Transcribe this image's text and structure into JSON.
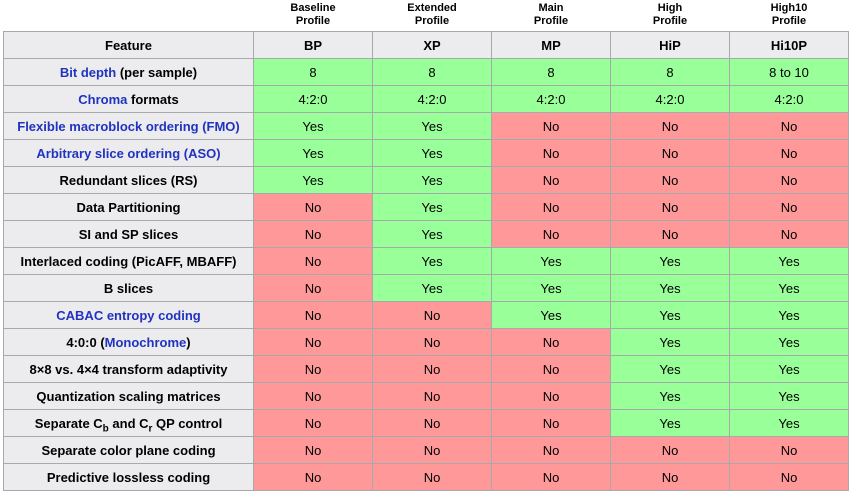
{
  "colors": {
    "yes_bg": "#99ff99",
    "no_bg": "#ff9999",
    "header_bg": "#ececee",
    "border": "#a7a9ac",
    "link_blue": "#2033c0"
  },
  "table": {
    "feature_header": "Feature",
    "profiles": [
      {
        "label_lines": [
          "Baseline",
          "Profile"
        ],
        "abbr": "BP"
      },
      {
        "label_lines": [
          "Extended",
          "Profile"
        ],
        "abbr": "XP"
      },
      {
        "label_lines": [
          "Main",
          "Profile"
        ],
        "abbr": "MP"
      },
      {
        "label_lines": [
          "High",
          "Profile"
        ],
        "abbr": "HiP"
      },
      {
        "label_lines": [
          "High10",
          "Profile"
        ],
        "abbr": "Hi10P"
      }
    ],
    "rows": [
      {
        "feature": [
          {
            "t": "Bit depth",
            "link": true
          },
          {
            "t": " (per sample)"
          }
        ],
        "cells": [
          {
            "t": "8",
            "ok": true
          },
          {
            "t": "8",
            "ok": true
          },
          {
            "t": "8",
            "ok": true
          },
          {
            "t": "8",
            "ok": true
          },
          {
            "t": "8 to 10",
            "ok": true
          }
        ]
      },
      {
        "feature": [
          {
            "t": "Chroma",
            "link": true
          },
          {
            "t": " formats"
          }
        ],
        "cells": [
          {
            "t": "4:2:0",
            "ok": true
          },
          {
            "t": "4:2:0",
            "ok": true
          },
          {
            "t": "4:2:0",
            "ok": true
          },
          {
            "t": "4:2:0",
            "ok": true
          },
          {
            "t": "4:2:0",
            "ok": true
          }
        ]
      },
      {
        "feature": [
          {
            "t": "Flexible macroblock ordering (FMO)",
            "link": true
          }
        ],
        "cells": [
          {
            "t": "Yes",
            "ok": true
          },
          {
            "t": "Yes",
            "ok": true
          },
          {
            "t": "No",
            "ok": false
          },
          {
            "t": "No",
            "ok": false
          },
          {
            "t": "No",
            "ok": false
          }
        ]
      },
      {
        "feature": [
          {
            "t": "Arbitrary slice ordering (ASO)",
            "link": true
          }
        ],
        "cells": [
          {
            "t": "Yes",
            "ok": true
          },
          {
            "t": "Yes",
            "ok": true
          },
          {
            "t": "No",
            "ok": false
          },
          {
            "t": "No",
            "ok": false
          },
          {
            "t": "No",
            "ok": false
          }
        ]
      },
      {
        "feature": [
          {
            "t": "Redundant slices (RS)"
          }
        ],
        "cells": [
          {
            "t": "Yes",
            "ok": true
          },
          {
            "t": "Yes",
            "ok": true
          },
          {
            "t": "No",
            "ok": false
          },
          {
            "t": "No",
            "ok": false
          },
          {
            "t": "No",
            "ok": false
          }
        ]
      },
      {
        "feature": [
          {
            "t": "Data Partitioning"
          }
        ],
        "cells": [
          {
            "t": "No",
            "ok": false
          },
          {
            "t": "Yes",
            "ok": true
          },
          {
            "t": "No",
            "ok": false
          },
          {
            "t": "No",
            "ok": false
          },
          {
            "t": "No",
            "ok": false
          }
        ]
      },
      {
        "feature": [
          {
            "t": "SI and SP slices"
          }
        ],
        "cells": [
          {
            "t": "No",
            "ok": false
          },
          {
            "t": "Yes",
            "ok": true
          },
          {
            "t": "No",
            "ok": false
          },
          {
            "t": "No",
            "ok": false
          },
          {
            "t": "No",
            "ok": false
          }
        ]
      },
      {
        "feature": [
          {
            "t": "Interlaced coding (PicAFF, MBAFF)"
          }
        ],
        "cells": [
          {
            "t": "No",
            "ok": false
          },
          {
            "t": "Yes",
            "ok": true
          },
          {
            "t": "Yes",
            "ok": true
          },
          {
            "t": "Yes",
            "ok": true
          },
          {
            "t": "Yes",
            "ok": true
          }
        ]
      },
      {
        "feature": [
          {
            "t": "B slices"
          }
        ],
        "cells": [
          {
            "t": "No",
            "ok": false
          },
          {
            "t": "Yes",
            "ok": true
          },
          {
            "t": "Yes",
            "ok": true
          },
          {
            "t": "Yes",
            "ok": true
          },
          {
            "t": "Yes",
            "ok": true
          }
        ]
      },
      {
        "feature": [
          {
            "t": "CABAC entropy coding",
            "link": true
          }
        ],
        "cells": [
          {
            "t": "No",
            "ok": false
          },
          {
            "t": "No",
            "ok": false
          },
          {
            "t": "Yes",
            "ok": true
          },
          {
            "t": "Yes",
            "ok": true
          },
          {
            "t": "Yes",
            "ok": true
          }
        ]
      },
      {
        "feature": [
          {
            "t": "4:0:0 ("
          },
          {
            "t": "Monochrome",
            "link": true
          },
          {
            "t": ")"
          }
        ],
        "cells": [
          {
            "t": "No",
            "ok": false
          },
          {
            "t": "No",
            "ok": false
          },
          {
            "t": "No",
            "ok": false
          },
          {
            "t": "Yes",
            "ok": true
          },
          {
            "t": "Yes",
            "ok": true
          }
        ]
      },
      {
        "feature": [
          {
            "t": "8×8 vs. 4×4 transform adaptivity"
          }
        ],
        "cells": [
          {
            "t": "No",
            "ok": false
          },
          {
            "t": "No",
            "ok": false
          },
          {
            "t": "No",
            "ok": false
          },
          {
            "t": "Yes",
            "ok": true
          },
          {
            "t": "Yes",
            "ok": true
          }
        ]
      },
      {
        "feature": [
          {
            "t": "Quantization scaling matrices"
          }
        ],
        "cells": [
          {
            "t": "No",
            "ok": false
          },
          {
            "t": "No",
            "ok": false
          },
          {
            "t": "No",
            "ok": false
          },
          {
            "t": "Yes",
            "ok": true
          },
          {
            "t": "Yes",
            "ok": true
          }
        ]
      },
      {
        "feature": [
          {
            "t": "Separate C"
          },
          {
            "t": "b",
            "sub": true
          },
          {
            "t": " and C"
          },
          {
            "t": "r",
            "sub": true
          },
          {
            "t": " QP control"
          }
        ],
        "cells": [
          {
            "t": "No",
            "ok": false
          },
          {
            "t": "No",
            "ok": false
          },
          {
            "t": "No",
            "ok": false
          },
          {
            "t": "Yes",
            "ok": true
          },
          {
            "t": "Yes",
            "ok": true
          }
        ]
      },
      {
        "feature": [
          {
            "t": "Separate color plane coding"
          }
        ],
        "cells": [
          {
            "t": "No",
            "ok": false
          },
          {
            "t": "No",
            "ok": false
          },
          {
            "t": "No",
            "ok": false
          },
          {
            "t": "No",
            "ok": false
          },
          {
            "t": "No",
            "ok": false
          }
        ]
      },
      {
        "feature": [
          {
            "t": "Predictive lossless coding"
          }
        ],
        "cells": [
          {
            "t": "No",
            "ok": false
          },
          {
            "t": "No",
            "ok": false
          },
          {
            "t": "No",
            "ok": false
          },
          {
            "t": "No",
            "ok": false
          },
          {
            "t": "No",
            "ok": false
          }
        ]
      }
    ]
  }
}
